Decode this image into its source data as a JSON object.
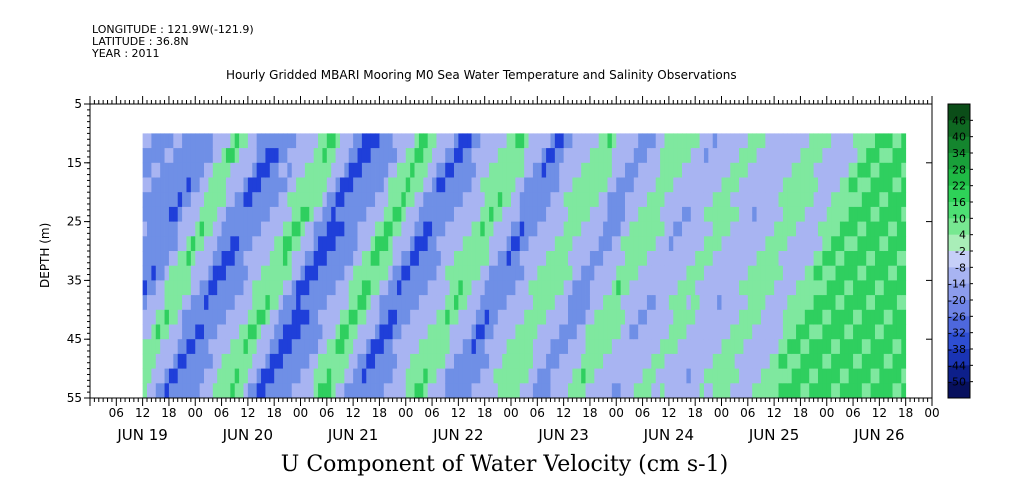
{
  "metadata": {
    "longitude": "LONGITUDE : 121.9W(-121.9)",
    "latitude": "LATITUDE : 36.8N",
    "year": "YEAR : 2011"
  },
  "plot_title": "Hourly Gridded MBARI Mooring M0 Sea Water Temperature and Salinity Observations",
  "bottom_title": "U Component of Water Velocity (cm s-1)",
  "ylabel": "DEPTH (m)",
  "colors": {
    "strong_neg": "#1f3fd9",
    "mid_neg": "#6f8fe6",
    "light_neg": "#a8b4f2",
    "pos": "#7fe89f",
    "strong_pos": "#2fcf5f",
    "background": "#ffffff"
  },
  "chart_data": {
    "type": "heatmap",
    "variable": "U Component of Water Velocity",
    "units": "cm s-1",
    "y_axis": {
      "label": "DEPTH (m)",
      "ticks": [
        "5",
        "15",
        "25",
        "35",
        "45",
        "55"
      ],
      "range": [
        5,
        55
      ],
      "data_range": [
        10,
        55
      ],
      "inverted": true
    },
    "x_axis": {
      "hour_ticks": [
        "06",
        "12",
        "18",
        "00",
        "06",
        "12",
        "18",
        "00",
        "06",
        "12",
        "18",
        "00",
        "06",
        "12",
        "18",
        "00",
        "06",
        "12",
        "18",
        "00",
        "06",
        "12",
        "18",
        "00",
        "06",
        "12",
        "18",
        "00",
        "06",
        "12",
        "18",
        "00"
      ],
      "day_labels": [
        "JUN 19",
        "JUN 20",
        "JUN 21",
        "JUN 22",
        "JUN 23",
        "JUN 24",
        "JUN 25",
        "JUN 26"
      ],
      "data_start_hour": 12,
      "data_end_hour": 186
    },
    "colorbar": {
      "labels": [
        "46",
        "40",
        "34",
        "28",
        "22",
        "16",
        "10",
        "4",
        "-2",
        "-8",
        "-14",
        "-20",
        "-26",
        "-32",
        "-38",
        "-44",
        "-50"
      ],
      "colors": [
        "#0b4d18",
        "#0f6922",
        "#14852e",
        "#19a03a",
        "#1fba45",
        "#2ed258",
        "#4ddf73",
        "#77e891",
        "#a9eeb8",
        "#c6cff8",
        "#a8b4f2",
        "#8c9cec",
        "#6f84e6",
        "#4e68dd",
        "#2e4ed3",
        "#1a34b5",
        "#0d1f8a",
        "#07105e"
      ]
    },
    "pattern_hours": [
      {
        "hour": 20,
        "value": -14
      },
      {
        "hour": 26,
        "value": -22
      },
      {
        "hour": 33,
        "value": 10
      },
      {
        "hour": 41,
        "value": -24
      },
      {
        "hour": 48,
        "value": -10
      },
      {
        "hour": 55,
        "value": 12
      },
      {
        "hour": 62,
        "value": -26
      },
      {
        "hour": 70,
        "value": -12
      },
      {
        "hour": 76,
        "value": 14
      },
      {
        "hour": 84,
        "value": -24
      },
      {
        "hour": 91,
        "value": -8
      },
      {
        "hour": 98,
        "value": 10
      },
      {
        "hour": 106,
        "value": -22
      },
      {
        "hour": 112,
        "value": -6
      },
      {
        "hour": 118,
        "value": 8
      },
      {
        "hour": 126,
        "value": -18
      },
      {
        "hour": 134,
        "value": 8
      },
      {
        "hour": 142,
        "value": -12
      },
      {
        "hour": 150,
        "value": 4
      },
      {
        "hour": 158,
        "value": -10
      },
      {
        "hour": 166,
        "value": 6
      },
      {
        "hour": 172,
        "value": -8
      },
      {
        "hour": 178,
        "value": 10
      },
      {
        "hour": 184,
        "value": 12
      }
    ]
  }
}
